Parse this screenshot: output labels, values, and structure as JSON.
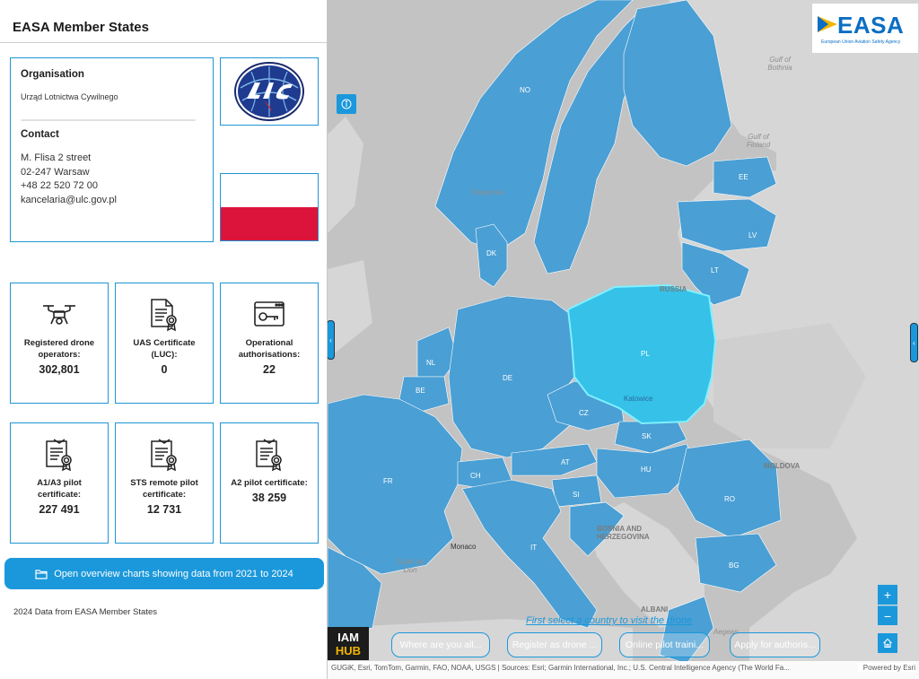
{
  "sidebar": {
    "title": "EASA Member States",
    "organisation": {
      "heading": "Organisation",
      "name": "Urząd Lotnictwa Cywilnego"
    },
    "contact": {
      "heading": "Contact",
      "lines": [
        "M. Flisa 2 street",
        "02-247 Warsaw",
        "+48 22 520 72 00",
        "kancelaria@ulc.gov.pl"
      ]
    },
    "logo_icon": "ulc-logo",
    "flag_icon": "poland-flag",
    "stats": [
      {
        "icon": "drone-icon",
        "label": "Registered drone operators:",
        "value": "302,801"
      },
      {
        "icon": "certificate-document-icon",
        "label": "UAS Certificate (LUC):",
        "value": "0"
      },
      {
        "icon": "browser-key-icon",
        "label": "Operational authorisations:",
        "value": "22"
      },
      {
        "icon": "pilot-certificate-icon",
        "label": "A1/A3 pilot certificate:",
        "value": "227 491"
      },
      {
        "icon": "pilot-certificate-icon",
        "label": "STS remote pilot certificate:",
        "value": "12 731"
      },
      {
        "icon": "pilot-certificate-icon",
        "label": "A2 pilot certificate:",
        "value": "38 259"
      }
    ],
    "cta_label": "Open overview charts showing data from 2021 to 2024",
    "footnote": "2024 Data from EASA Member States"
  },
  "map": {
    "country_labels": [
      "NO",
      "EE",
      "LV",
      "LT",
      "DK",
      "PL",
      "NL",
      "BE",
      "DE",
      "CZ",
      "SK",
      "AT",
      "HU",
      "CH",
      "SI",
      "FR",
      "RO",
      "IT",
      "BG"
    ],
    "place_labels": [
      "RUSSIA",
      "Katowice",
      "MOLDOVA",
      "BOSNIA AND HERZEGOVINA",
      "ALBANI",
      "Monaco"
    ],
    "sea_labels": [
      "Skagerrak",
      "Gulf of Finland",
      "Gulf of Bothnia",
      "Golfe du Lion",
      "Aegean"
    ],
    "easa_logo": {
      "word": "EASA",
      "subtitle": "European Union Aviation Safety Agency"
    },
    "hint": "First select a country to visit the drone",
    "chips": [
      "Where are you all...",
      "Register as drone ...",
      "Online pilot traini...",
      "Apply for authoris..."
    ],
    "iam_logo_text": "IAM HUB",
    "attribution": "GUGiK, Esri, TomTom, Garmin, FAO, NOAA, USGS | Sources: Esri; Garmin International, Inc.; U.S. Central Intelligence Agency (The World Fa...",
    "powered_by": "Powered by Esri",
    "zoom_in": "+",
    "zoom_out": "−",
    "colors": {
      "member": "#4a9fd4",
      "selected": "#35c1e8",
      "nonmember": "#d6d6d6",
      "water": "#c3c3c3",
      "accent": "#1b98db"
    }
  }
}
